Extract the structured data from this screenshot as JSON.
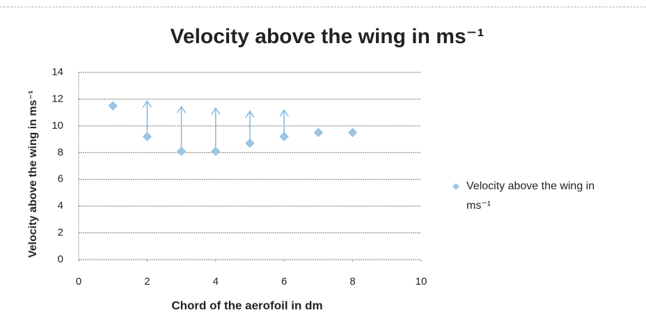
{
  "chart_data": {
    "type": "scatter",
    "title": "Velocity above the wing in ms⁻¹",
    "x_label": "Chord of the aerofoil in dm",
    "y_label": "Velocity above the wing in ms⁻¹",
    "series": [
      {
        "name": "Velocity above the wing in ms⁻¹",
        "color": "#9cc6e4",
        "x": [
          1,
          2,
          3,
          4,
          5,
          6,
          7,
          8
        ],
        "values": [
          11.5,
          9.2,
          8.1,
          8.1,
          8.7,
          9.2,
          9.5,
          9.5
        ]
      }
    ],
    "xlim": [
      0,
      10
    ],
    "xticks": [
      0,
      2,
      4,
      6,
      8,
      10
    ],
    "ylim": [
      0,
      14
    ],
    "yticks": [
      0,
      2,
      4,
      6,
      8,
      10,
      12,
      14
    ],
    "grid": true,
    "legend": "right"
  }
}
